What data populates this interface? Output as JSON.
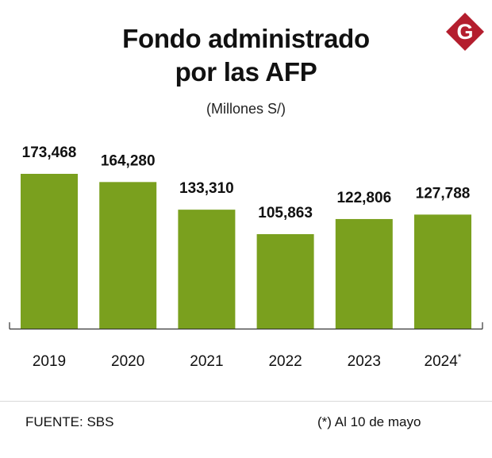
{
  "header": {
    "title_line1": "Fondo administrado",
    "title_line2": "por las AFP",
    "subtitle": "(Millones S/)",
    "logo_letter": "G"
  },
  "colors": {
    "bar": "#7aa01e",
    "logo": "#b41e2e",
    "axis": "#333333"
  },
  "chart_data": {
    "type": "bar",
    "title": "Fondo administrado por las AFP",
    "subtitle": "(Millones S/)",
    "categories": [
      "2019",
      "2020",
      "2021",
      "2022",
      "2023",
      "2024*"
    ],
    "values": [
      173468,
      164280,
      133310,
      105863,
      122806,
      127788
    ],
    "value_labels": [
      "173,468",
      "164,280",
      "133,310",
      "105,863",
      "122,806",
      "127,788"
    ],
    "xlabel": "",
    "ylabel": "Millones S/",
    "ylim": [
      0,
      173468
    ],
    "grid": false
  },
  "footer": {
    "source": "FUENTE: SBS",
    "note_mark": "(*)",
    "note_text": "Al 10 de mayo"
  }
}
